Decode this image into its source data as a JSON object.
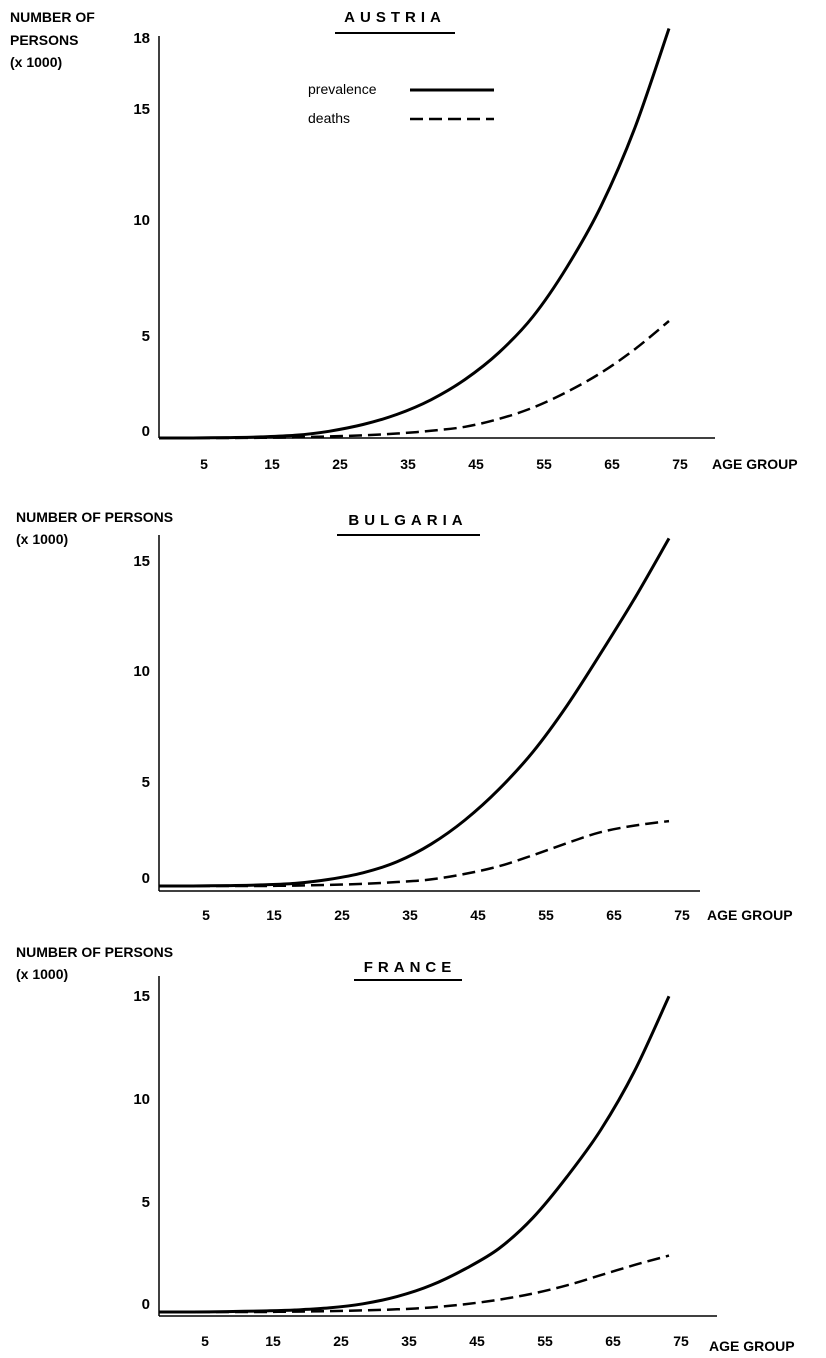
{
  "chart_data": [
    {
      "type": "line",
      "title": "AUSTRIA",
      "ylabel_lines": [
        "NUMBER OF",
        "PERSONS",
        "(x 1000)"
      ],
      "xlabel": "AGE GROUP",
      "x_ticks": [
        "5",
        "15",
        "25",
        "35",
        "45",
        "55",
        "65",
        "75"
      ],
      "y_ticks": [
        "0",
        "5",
        "10",
        "15",
        "18"
      ],
      "ylim": [
        0,
        18
      ],
      "legend": {
        "prevalence": "prevalence",
        "deaths": "deaths"
      },
      "x": [
        0,
        5,
        10,
        15,
        20,
        25,
        30,
        35,
        40,
        45,
        50,
        55,
        60,
        65,
        70,
        75
      ],
      "series": [
        {
          "name": "prevalence",
          "style": "solid",
          "values": [
            0,
            0,
            0.02,
            0.05,
            0.12,
            0.3,
            0.6,
            1.05,
            1.7,
            2.6,
            3.8,
            5.4,
            7.6,
            10.3,
            13.8,
            18.2
          ]
        },
        {
          "name": "deaths",
          "style": "dashed",
          "values": [
            0,
            0,
            0,
            0.01,
            0.03,
            0.07,
            0.12,
            0.2,
            0.32,
            0.5,
            0.85,
            1.35,
            2.05,
            2.9,
            3.95,
            5.2
          ]
        }
      ]
    },
    {
      "type": "line",
      "title": "BULGARIA",
      "ylabel_lines": [
        "NUMBER OF PERSONS",
        "(x 1000)"
      ],
      "xlabel": "AGE GROUP",
      "x_ticks": [
        "5",
        "15",
        "25",
        "35",
        "45",
        "55",
        "65",
        "75"
      ],
      "y_ticks": [
        "0",
        "5",
        "10",
        "15"
      ],
      "ylim": [
        0,
        15
      ],
      "x": [
        0,
        5,
        10,
        15,
        20,
        25,
        30,
        35,
        40,
        45,
        50,
        55,
        60,
        65,
        70,
        75
      ],
      "series": [
        {
          "name": "prevalence",
          "style": "solid",
          "values": [
            0,
            0,
            0.02,
            0.05,
            0.12,
            0.3,
            0.6,
            1.1,
            1.9,
            3.0,
            4.4,
            6.1,
            8.2,
            10.6,
            13.1,
            15.8
          ]
        },
        {
          "name": "deaths",
          "style": "dashed",
          "values": [
            0,
            0,
            0,
            0,
            0.02,
            0.05,
            0.1,
            0.18,
            0.3,
            0.55,
            0.9,
            1.4,
            1.95,
            2.45,
            2.75,
            2.95
          ]
        }
      ]
    },
    {
      "type": "line",
      "title": "FRANCE",
      "ylabel_lines": [
        "NUMBER OF PERSONS",
        "(x 1000)"
      ],
      "xlabel": "AGE GROUP",
      "x_ticks": [
        "5",
        "15",
        "25",
        "35",
        "45",
        "55",
        "65",
        "75"
      ],
      "y_ticks": [
        "0",
        "5",
        "10",
        "15"
      ],
      "ylim": [
        0,
        15
      ],
      "x": [
        0,
        5,
        10,
        15,
        20,
        25,
        30,
        35,
        40,
        45,
        50,
        55,
        60,
        65,
        70,
        75
      ],
      "series": [
        {
          "name": "prevalence",
          "style": "solid",
          "values": [
            0,
            0,
            0.02,
            0.05,
            0.1,
            0.2,
            0.4,
            0.75,
            1.3,
            2.1,
            3.1,
            4.6,
            6.6,
            8.9,
            11.8,
            15.4
          ]
        },
        {
          "name": "deaths",
          "style": "dashed",
          "values": [
            0,
            0,
            0,
            0,
            0.02,
            0.04,
            0.08,
            0.13,
            0.22,
            0.38,
            0.6,
            0.9,
            1.3,
            1.8,
            2.3,
            2.75
          ]
        }
      ]
    }
  ]
}
